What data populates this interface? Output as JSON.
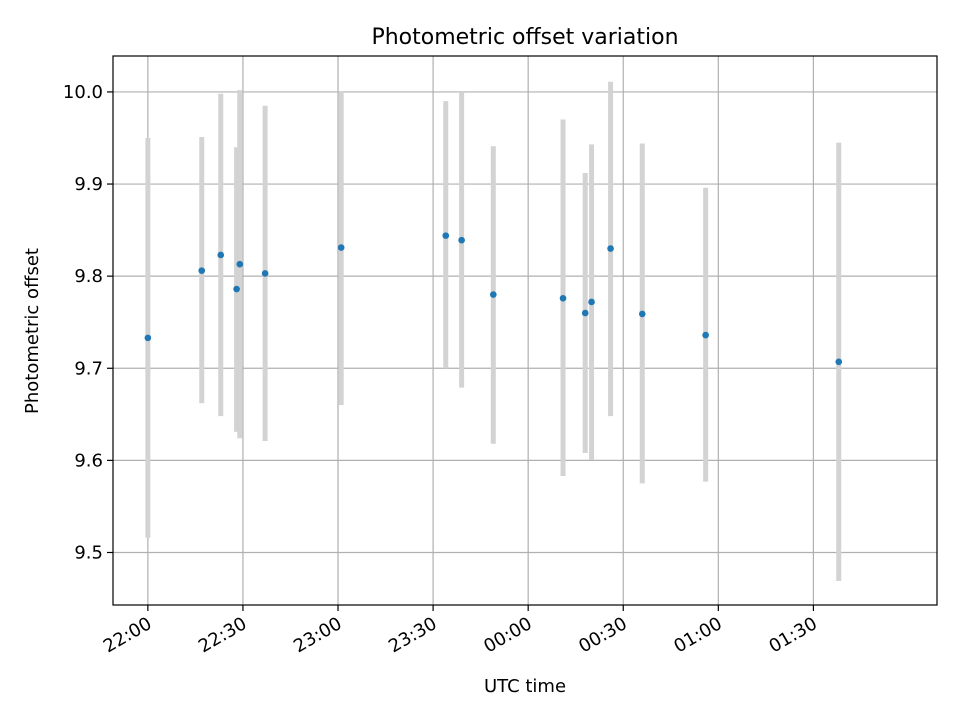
{
  "chart_data": {
    "type": "scatter",
    "title": "Photometric offset variation",
    "xlabel": "UTC time",
    "ylabel": "Photometric offset",
    "grid": true,
    "x_ticks": [
      "22:00",
      "22:30",
      "23:00",
      "23:30",
      "00:00",
      "00:30",
      "01:00",
      "01:30"
    ],
    "y_ticks": [
      "9.5",
      "9.6",
      "9.7",
      "9.8",
      "9.9",
      "10.0"
    ],
    "x_tick_times": [
      "22:00",
      "22:30",
      "23:00",
      "23:30",
      "00:00",
      "00:30",
      "01:00",
      "01:30"
    ],
    "xlim": [
      "21:49",
      "02:09"
    ],
    "ylim": [
      9.443,
      10.039
    ],
    "colors": {
      "marker": "#1f77b4",
      "errorbar": "#d3d3d3",
      "grid": "#b0b0b0",
      "axes": "#000000"
    },
    "series": [
      {
        "points": [
          {
            "time": "22:00",
            "y": 9.733,
            "y_low": 9.516,
            "y_high": 9.95
          },
          {
            "time": "22:17",
            "y": 9.806,
            "y_low": 9.662,
            "y_high": 9.951
          },
          {
            "time": "22:23",
            "y": 9.823,
            "y_low": 9.648,
            "y_high": 9.998
          },
          {
            "time": "22:28",
            "y": 9.786,
            "y_low": 9.631,
            "y_high": 9.94
          },
          {
            "time": "22:29",
            "y": 9.813,
            "y_low": 9.624,
            "y_high": 10.002
          },
          {
            "time": "22:37",
            "y": 9.803,
            "y_low": 9.621,
            "y_high": 9.985
          },
          {
            "time": "23:01",
            "y": 9.831,
            "y_low": 9.66,
            "y_high": 10.001
          },
          {
            "time": "23:34",
            "y": 9.844,
            "y_low": 9.7,
            "y_high": 9.99
          },
          {
            "time": "23:39",
            "y": 9.839,
            "y_low": 9.679,
            "y_high": 9.999
          },
          {
            "time": "23:49",
            "y": 9.78,
            "y_low": 9.618,
            "y_high": 9.941
          },
          {
            "time": "00:11",
            "y": 9.776,
            "y_low": 9.583,
            "y_high": 9.97
          },
          {
            "time": "00:18",
            "y": 9.76,
            "y_low": 9.608,
            "y_high": 9.912
          },
          {
            "time": "00:20",
            "y": 9.772,
            "y_low": 9.601,
            "y_high": 9.943
          },
          {
            "time": "00:26",
            "y": 9.83,
            "y_low": 9.648,
            "y_high": 10.011
          },
          {
            "time": "00:36",
            "y": 9.759,
            "y_low": 9.575,
            "y_high": 9.944
          },
          {
            "time": "00:56",
            "y": 9.736,
            "y_low": 9.577,
            "y_high": 9.896
          },
          {
            "time": "01:38",
            "y": 9.707,
            "y_low": 9.469,
            "y_high": 9.945
          }
        ]
      }
    ]
  }
}
